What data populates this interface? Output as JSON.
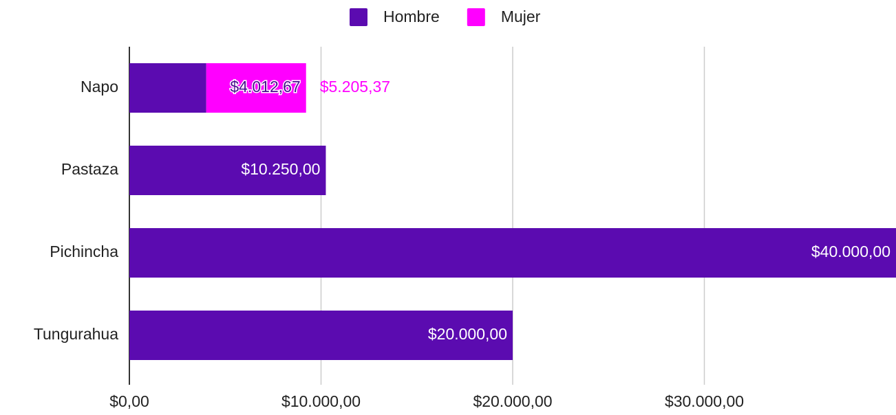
{
  "chart_data": {
    "type": "stacked-bar-horizontal",
    "categories": [
      "Napo",
      "Pastaza",
      "Pichincha",
      "Tungurahua"
    ],
    "series": [
      {
        "name": "Hombre",
        "color": "#5b0bb0",
        "values": [
          4012.67,
          10250,
          40000,
          20000
        ],
        "value_labels": [
          "$4.012,67",
          "$10.250,00",
          "$40.000,00",
          "$20.000,00"
        ]
      },
      {
        "name": "Mujer",
        "color": "#ff00ff",
        "values": [
          5205.37,
          null,
          null,
          null
        ],
        "value_labels": [
          "$5.205,37",
          null,
          null,
          null
        ]
      }
    ],
    "xlim": [
      0,
      40000
    ],
    "xticks": [
      {
        "value": 0,
        "label": "$0,00"
      },
      {
        "value": 10000,
        "label": "$10.000,00"
      },
      {
        "value": 20000,
        "label": "$20.000,00"
      },
      {
        "value": 30000,
        "label": "$30.000,00"
      }
    ],
    "grid": true,
    "legend": "top"
  }
}
